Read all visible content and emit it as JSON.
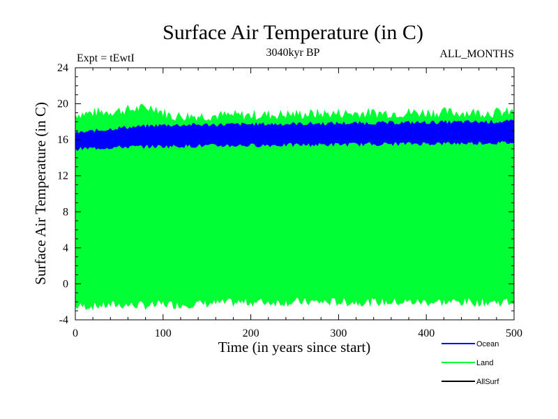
{
  "chart_data": {
    "type": "area",
    "title": "Surface Air Temperature (in C)",
    "subtitle": "3040kyr BP",
    "experiment_label": "Expt = tEwtI",
    "months_label": "ALL_MONTHS",
    "xlabel": "Time (in years since start)",
    "ylabel": "Surface Air Temperature (in C)",
    "xlim": [
      0,
      500
    ],
    "ylim": [
      -4,
      24
    ],
    "xticks": [
      0,
      100,
      200,
      300,
      400,
      500
    ],
    "yticks": [
      -4,
      0,
      4,
      8,
      12,
      16,
      20,
      24
    ],
    "grid": false,
    "legend_position": "bottom-right",
    "series": [
      {
        "name": "Land",
        "color": "#00ff33",
        "band": [
          {
            "x": 0,
            "low": -2.5,
            "high": 18.8
          },
          {
            "x": 50,
            "low": -2.3,
            "high": 19.2
          },
          {
            "x": 90,
            "low": -2.4,
            "high": 19.6
          },
          {
            "x": 100,
            "low": -2.2,
            "high": 19.0
          },
          {
            "x": 110,
            "low": -2.3,
            "high": 18.6
          },
          {
            "x": 200,
            "low": -2.0,
            "high": 18.7
          },
          {
            "x": 300,
            "low": -2.0,
            "high": 18.9
          },
          {
            "x": 400,
            "low": -2.0,
            "high": 19.0
          },
          {
            "x": 500,
            "low": -2.0,
            "high": 19.0
          }
        ]
      },
      {
        "name": "Ocean",
        "color": "#0000ff",
        "band": [
          {
            "x": 0,
            "low": 15.0,
            "high": 16.7
          },
          {
            "x": 50,
            "low": 15.2,
            "high": 17.3
          },
          {
            "x": 100,
            "low": 15.3,
            "high": 17.6
          },
          {
            "x": 200,
            "low": 15.4,
            "high": 17.7
          },
          {
            "x": 300,
            "low": 15.5,
            "high": 17.8
          },
          {
            "x": 400,
            "low": 15.6,
            "high": 17.9
          },
          {
            "x": 500,
            "low": 15.7,
            "high": 18.0
          }
        ]
      },
      {
        "name": "AllSurf",
        "color": "#000000",
        "band": []
      }
    ]
  }
}
